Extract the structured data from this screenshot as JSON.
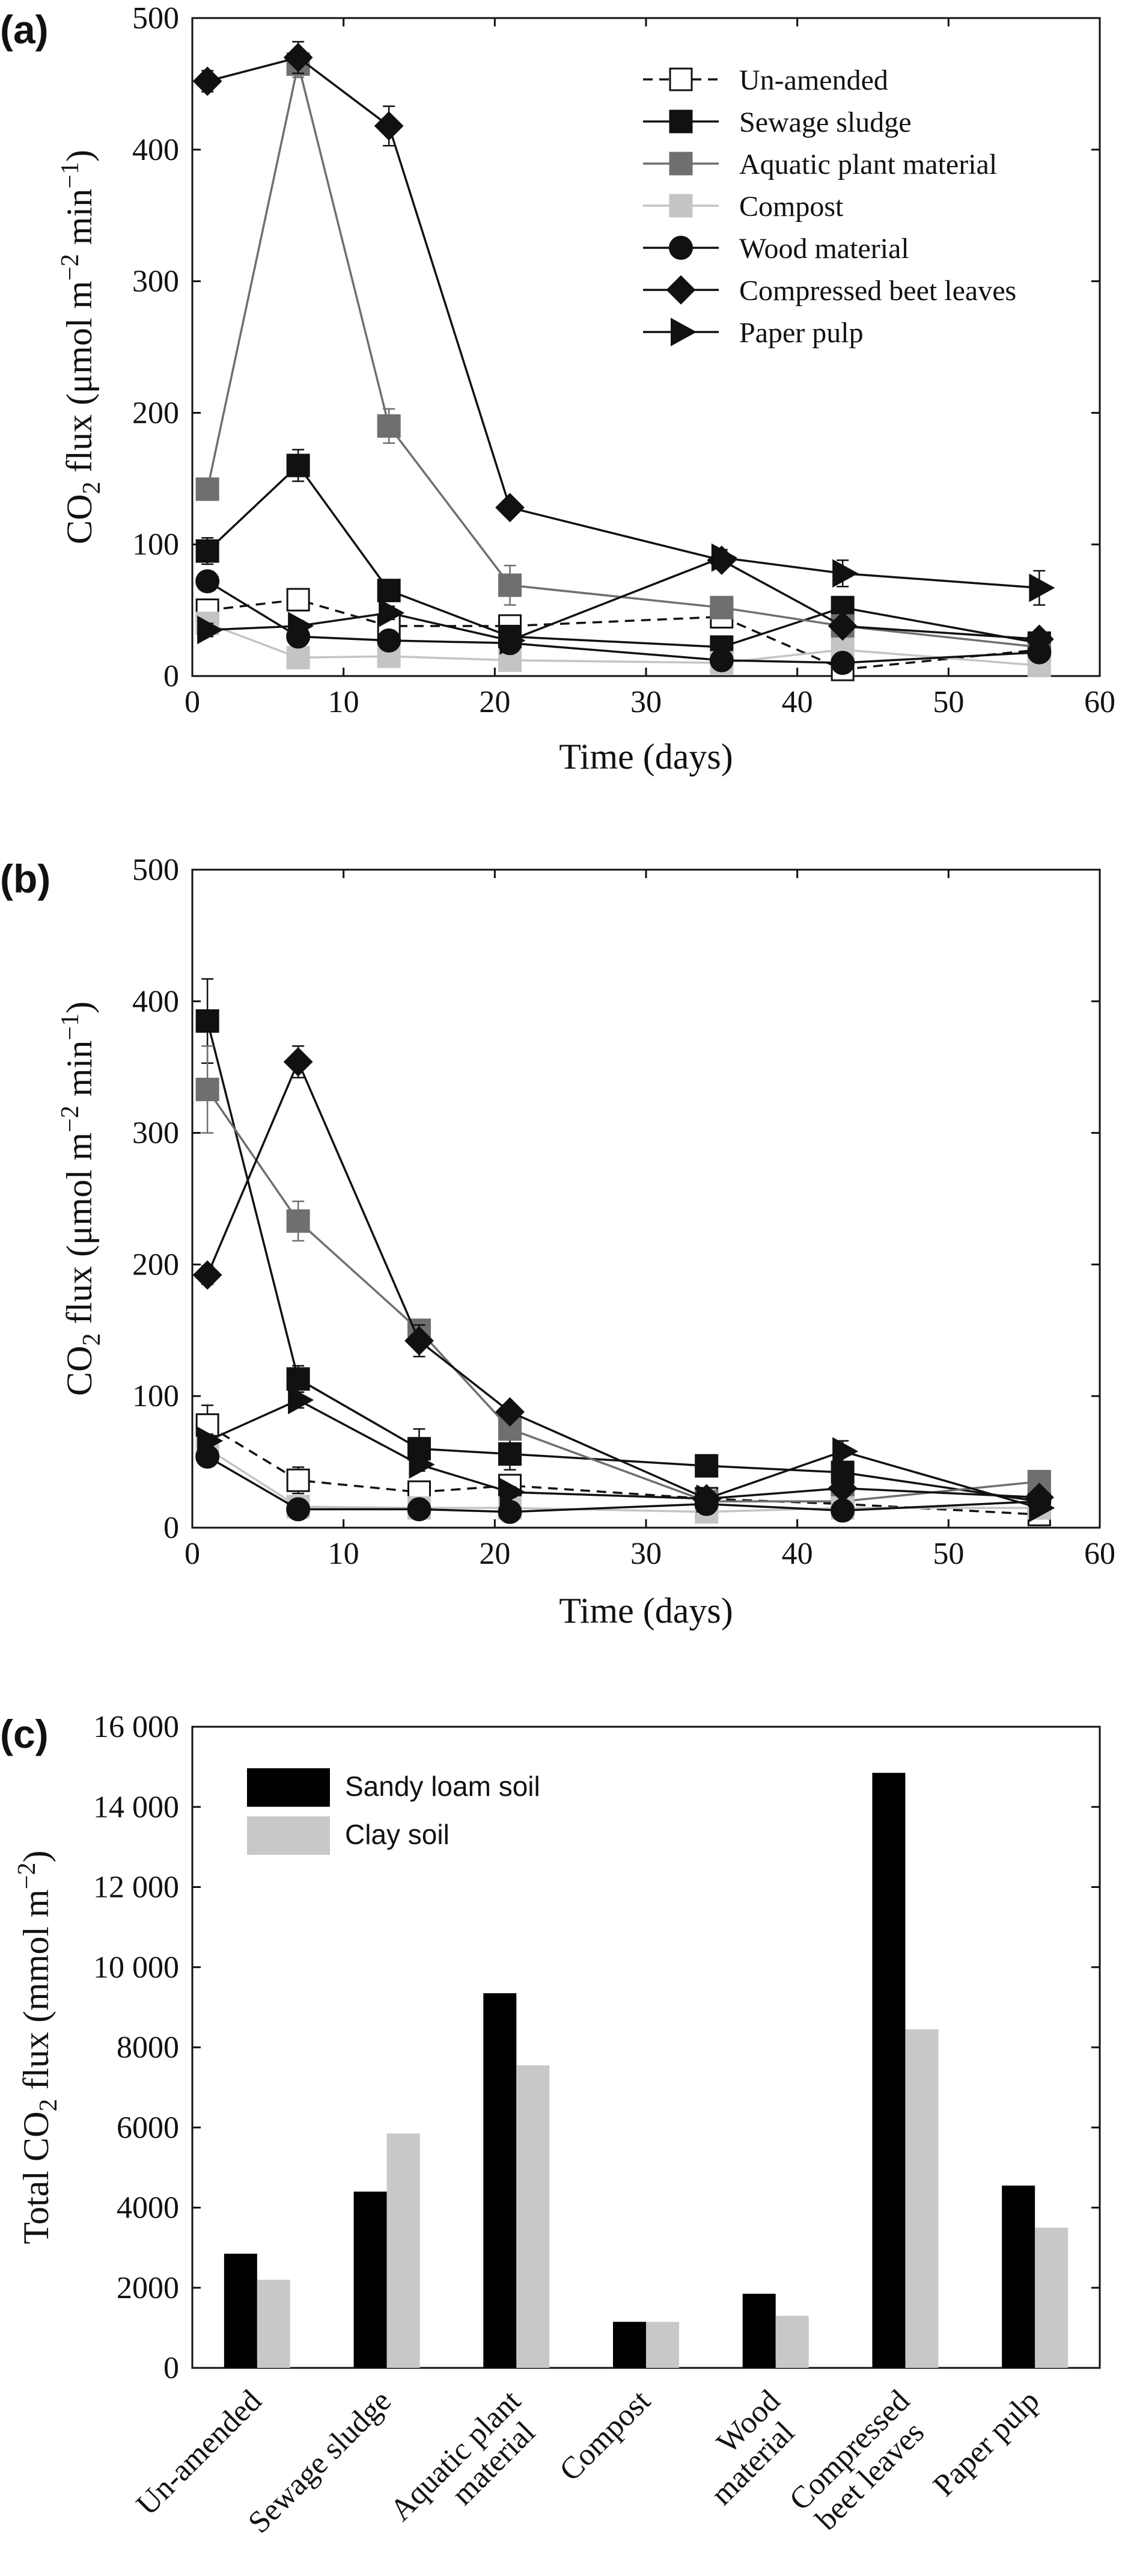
{
  "panels": [
    {
      "label": "(a)",
      "xlabel": "Time (days)",
      "ylabel": {
        "pre": "CO",
        "sub": "2",
        "mid": " flux (μmol m",
        "sup1": "−2",
        "gap": " min",
        "sup2": "−1",
        "post": ")"
      }
    },
    {
      "label": "(b)",
      "xlabel": "Time (days)",
      "ylabel": {
        "pre": "CO",
        "sub": "2",
        "mid": " flux (μmol m",
        "sup1": "−2",
        "gap": " min",
        "sup2": "−1",
        "post": ")"
      }
    },
    {
      "label": "(c)",
      "ylabel": {
        "pre": "Total CO",
        "sub": "2",
        "mid": " flux (mmol m",
        "sup1": "−2",
        "post": ")"
      }
    }
  ],
  "chart_data": [
    {
      "type": "line",
      "xlabel": "Time (days)",
      "ylabel": "CO2 flux (μmol m−2 min−1)",
      "xlim": [
        0,
        60
      ],
      "ylim": [
        0,
        500
      ],
      "xticks": [
        0,
        10,
        20,
        30,
        40,
        50,
        60
      ],
      "yticks": [
        0,
        100,
        200,
        300,
        400,
        500
      ],
      "grid": false,
      "legend_position": "top-right",
      "series": [
        {
          "name": "Un-amended",
          "marker": "square-open",
          "line": "dashed",
          "color": "#111111",
          "x": [
            1,
            7,
            13,
            21,
            35,
            43,
            56
          ],
          "y": [
            50,
            58,
            38,
            38,
            45,
            5,
            20
          ],
          "err": [
            6,
            5,
            4,
            4,
            5,
            3,
            3
          ]
        },
        {
          "name": "Sewage sludge",
          "marker": "square",
          "line": "solid",
          "color": "#111111",
          "x": [
            1,
            7,
            13,
            21,
            35,
            43,
            56
          ],
          "y": [
            95,
            160,
            65,
            30,
            22,
            52,
            25
          ],
          "err": [
            10,
            12,
            5,
            4,
            3,
            5,
            3
          ]
        },
        {
          "name": "Aquatic plant material",
          "marker": "square",
          "line": "solid",
          "color": "#6f6f6f",
          "x": [
            1,
            7,
            13,
            21,
            35,
            43,
            56
          ],
          "y": [
            142,
            465,
            190,
            69,
            52,
            38,
            22
          ],
          "err": [
            5,
            10,
            13,
            15,
            6,
            4,
            3
          ]
        },
        {
          "name": "Compost",
          "marker": "square",
          "line": "solid",
          "color": "#c4c4c4",
          "x": [
            1,
            7,
            13,
            21,
            35,
            43,
            56
          ],
          "y": [
            40,
            14,
            15,
            12,
            10,
            20,
            8
          ],
          "err": [
            3,
            3,
            3,
            3,
            3,
            5,
            3
          ]
        },
        {
          "name": "Wood material",
          "marker": "circle",
          "line": "solid",
          "color": "#111111",
          "x": [
            1,
            7,
            13,
            21,
            35,
            43,
            56
          ],
          "y": [
            72,
            30,
            27,
            25,
            12,
            10,
            18
          ],
          "err": [
            5,
            4,
            4,
            4,
            3,
            5,
            3
          ]
        },
        {
          "name": "Compressed beet leaves",
          "marker": "diamond",
          "line": "solid",
          "color": "#111111",
          "x": [
            1,
            7,
            13,
            21,
            35,
            43,
            56
          ],
          "y": [
            452,
            470,
            418,
            128,
            88,
            38,
            28
          ],
          "err": [
            8,
            12,
            15,
            5,
            6,
            5,
            3
          ]
        },
        {
          "name": "Paper pulp",
          "marker": "triangle-right",
          "line": "solid",
          "color": "#111111",
          "x": [
            1,
            7,
            13,
            21,
            35,
            43,
            56
          ],
          "y": [
            35,
            38,
            48,
            27,
            90,
            78,
            67
          ],
          "err": [
            5,
            4,
            5,
            4,
            6,
            10,
            13
          ]
        }
      ]
    },
    {
      "type": "line",
      "xlabel": "Time (days)",
      "ylabel": "CO2 flux (μmol m−2 min−1)",
      "xlim": [
        0,
        60
      ],
      "ylim": [
        0,
        500
      ],
      "xticks": [
        0,
        10,
        20,
        30,
        40,
        50,
        60
      ],
      "yticks": [
        0,
        100,
        200,
        300,
        400,
        500
      ],
      "grid": false,
      "series": [
        {
          "name": "Un-amended",
          "marker": "square-open",
          "line": "dashed",
          "color": "#111111",
          "x": [
            1,
            7,
            15,
            21,
            34,
            43,
            56
          ],
          "y": [
            78,
            36,
            27,
            32,
            22,
            18,
            10
          ],
          "err": [
            15,
            10,
            6,
            5,
            4,
            4,
            3
          ]
        },
        {
          "name": "Sewage sludge",
          "marker": "square",
          "line": "solid",
          "color": "#111111",
          "x": [
            1,
            7,
            15,
            21,
            34,
            43,
            56
          ],
          "y": [
            385,
            113,
            60,
            56,
            47,
            42,
            20
          ],
          "err": [
            32,
            10,
            15,
            12,
            8,
            6,
            3
          ]
        },
        {
          "name": "Aquatic plant material",
          "marker": "square",
          "line": "solid",
          "color": "#6f6f6f",
          "x": [
            1,
            7,
            15,
            21,
            34,
            43,
            56
          ],
          "y": [
            333,
            233,
            150,
            75,
            20,
            20,
            35
          ],
          "err": [
            33,
            15,
            8,
            6,
            4,
            4,
            4
          ]
        },
        {
          "name": "Compost",
          "marker": "square",
          "line": "solid",
          "color": "#c4c4c4",
          "x": [
            1,
            7,
            15,
            21,
            34,
            43,
            56
          ],
          "y": [
            60,
            16,
            15,
            15,
            12,
            15,
            15
          ],
          "err": [
            4,
            3,
            3,
            3,
            3,
            3,
            3
          ]
        },
        {
          "name": "Wood material",
          "marker": "circle",
          "line": "solid",
          "color": "#111111",
          "x": [
            1,
            7,
            15,
            21,
            34,
            43,
            56
          ],
          "y": [
            54,
            14,
            14,
            12,
            18,
            13,
            20
          ],
          "err": [
            5,
            3,
            3,
            3,
            3,
            3,
            3
          ]
        },
        {
          "name": "Compressed beet leaves",
          "marker": "diamond",
          "line": "solid",
          "color": "#111111",
          "x": [
            1,
            7,
            15,
            21,
            34,
            43,
            56
          ],
          "y": [
            192,
            354,
            142,
            88,
            22,
            30,
            23
          ],
          "err": [
            7,
            12,
            12,
            5,
            3,
            4,
            3
          ]
        },
        {
          "name": "Paper pulp",
          "marker": "triangle-right",
          "line": "solid",
          "color": "#111111",
          "x": [
            1,
            7,
            15,
            21,
            34,
            43,
            56
          ],
          "y": [
            66,
            97,
            48,
            27,
            22,
            58,
            15
          ],
          "err": [
            5,
            6,
            5,
            4,
            4,
            8,
            3
          ]
        }
      ]
    },
    {
      "type": "bar",
      "ylabel": "Total CO2 flux (mmol m−2)",
      "ylim": [
        0,
        16000
      ],
      "yticks": [
        0,
        2000,
        4000,
        6000,
        8000,
        10000,
        12000,
        14000,
        16000
      ],
      "ytick_labels": [
        "0",
        "2000",
        "4000",
        "6000",
        "8000",
        "10 000",
        "12 000",
        "14 000",
        "16 000"
      ],
      "grid": false,
      "legend_position": "top-left",
      "categories": [
        [
          "Un-amended"
        ],
        [
          "Sewage sludge"
        ],
        [
          "Aquatic plant",
          "material"
        ],
        [
          "Compost"
        ],
        [
          "Wood",
          "material"
        ],
        [
          "Compressed",
          "beet leaves"
        ],
        [
          "Paper pulp"
        ]
      ],
      "series": [
        {
          "name": "Sandy loam soil",
          "color": "#000000",
          "values": [
            2850,
            4400,
            9350,
            1150,
            1850,
            14850,
            4550
          ]
        },
        {
          "name": "Clay soil",
          "color": "#c8c8c8",
          "values": [
            2200,
            5850,
            7550,
            1150,
            1300,
            8450,
            3500
          ]
        }
      ]
    }
  ]
}
